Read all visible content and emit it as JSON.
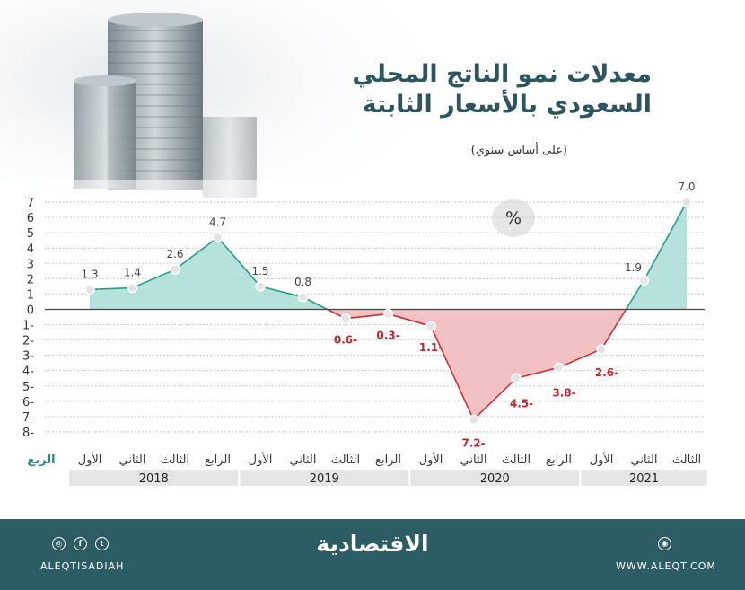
{
  "title": {
    "line1": "معدلات نمو الناتج المحلي",
    "line2": "السعودي بالأسعار الثابتة"
  },
  "subtitle": "(على أساس سنوي)",
  "unit_badge": "%",
  "colors": {
    "positive_fill": "#a8ddd5",
    "positive_line": "#2a9a8e",
    "negative_fill": "#f0b6b8",
    "negative_line": "#cc2e33",
    "negative_label": "#c0262c",
    "footer_bg": "#2c5d64",
    "title": "#2c5560"
  },
  "chart_data": {
    "type": "area",
    "ylim": [
      -8,
      7
    ],
    "y_ticks": [
      7,
      6,
      5,
      4,
      3,
      2,
      1,
      0,
      -1,
      -2,
      -3,
      -4,
      -5,
      -6,
      -7,
      -8
    ],
    "y_tick_labels": [
      "7",
      "6",
      "5",
      "4",
      "3",
      "2",
      "1",
      "0",
      "1-",
      "2-",
      "3-",
      "4-",
      "5-",
      "6-",
      "7-",
      "8-"
    ],
    "quarter_axis_label": "الربع",
    "quarters": [
      "الأول",
      "الثاني",
      "الثالث",
      "الرابع",
      "الأول",
      "الثاني",
      "الثالث",
      "الرابع",
      "الأول",
      "الثاني",
      "الثالث",
      "الرابع",
      "الأول",
      "الثاني",
      "الثالث"
    ],
    "years": [
      {
        "label": "2018",
        "quarters": 4
      },
      {
        "label": "2019",
        "quarters": 4
      },
      {
        "label": "2020",
        "quarters": 4
      },
      {
        "label": "2021",
        "quarters": 3
      }
    ],
    "values": [
      1.3,
      1.4,
      2.6,
      4.7,
      1.5,
      0.8,
      -0.6,
      -0.3,
      -1.1,
      -7.2,
      -4.5,
      -3.8,
      -2.6,
      1.9,
      7.0
    ],
    "value_labels": [
      "1.3",
      "1.4",
      "2.6",
      "4.7",
      "1.5",
      "0.8",
      "0.6-",
      "0.3-",
      "1.1-",
      "7.2-",
      "4.5-",
      "3.8-",
      "2.6-",
      "1.9",
      "7.0"
    ],
    "grid": true
  },
  "footer": {
    "logo": "الاقتصادية",
    "handle": "ALEQTISADIAH",
    "website": "WWW.ALEQT.COM",
    "social_icons": [
      "instagram-icon",
      "facebook-icon",
      "twitter-icon"
    ],
    "web_icon": "globe-icon"
  }
}
